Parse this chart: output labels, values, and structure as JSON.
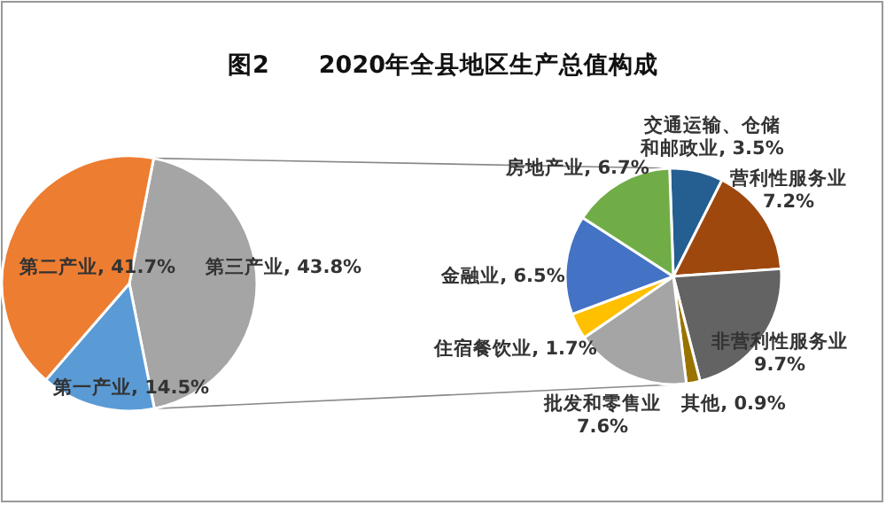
{
  "chart_data": [
    {
      "type": "pie",
      "title": "图2　　2020年全县地区生产总值构成",
      "categories": [
        "第三产业",
        "第一产业",
        "第二产业"
      ],
      "values": [
        43.8,
        14.5,
        41.7
      ],
      "value_labels": [
        "43.8%",
        "14.5%",
        "41.7%"
      ],
      "colors": [
        "#a5a5a5",
        "#5b9bd5",
        "#ed7d31"
      ]
    },
    {
      "type": "pie",
      "categories": [
        "交通运输、仓储和邮政业",
        "营利性服务业",
        "非营利性服务业",
        "其他",
        "批发和零售业",
        "住宿餐饮业",
        "金融业",
        "房地产业"
      ],
      "values": [
        3.5,
        7.2,
        9.7,
        0.9,
        7.6,
        1.7,
        6.5,
        6.7
      ],
      "value_labels": [
        "3.5%",
        "7.2%",
        "9.7%",
        "0.9%",
        "7.6%",
        "1.7%",
        "6.5%",
        "6.7%"
      ],
      "colors": [
        "#255e91",
        "#9e480e",
        "#636363",
        "#997300",
        "#a5a5a5",
        "#ffc000",
        "#4472c4",
        "#70ad47"
      ]
    }
  ]
}
